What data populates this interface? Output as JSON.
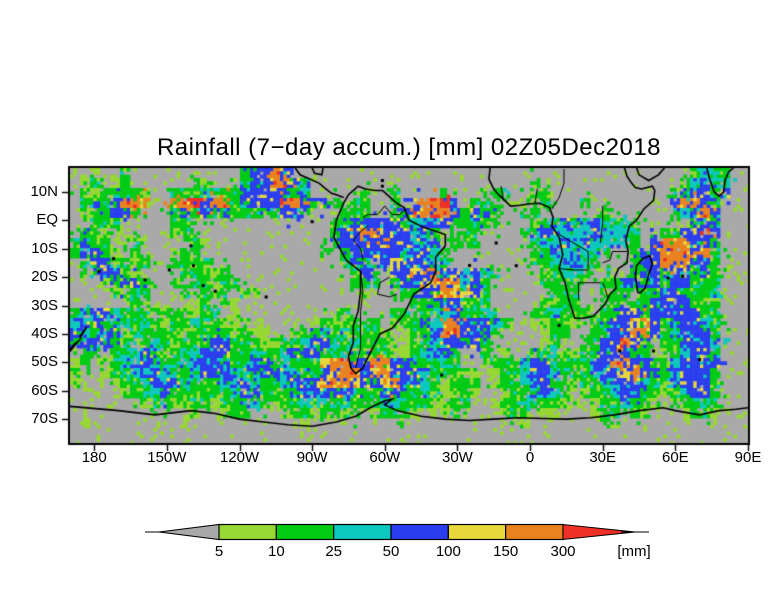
{
  "title": "Rainfall (7−day accum.) [mm] 02Z05Dec2018",
  "axes": {
    "y_tick_labels": [
      "10N",
      "EQ",
      "10S",
      "20S",
      "30S",
      "40S",
      "50S",
      "60S",
      "70S"
    ],
    "x_tick_labels": [
      "180",
      "150W",
      "120W",
      "90W",
      "60W",
      "30W",
      "0",
      "30E",
      "60E",
      "90E"
    ]
  },
  "colorbar": {
    "tick_labels": [
      "5",
      "10",
      "25",
      "50",
      "100",
      "150",
      "300"
    ],
    "unit_label": "[mm]",
    "below_min_color": "#a9a9a9",
    "above_max_color": "#ed2f26",
    "segment_colors": [
      "#97d832",
      "#00cc14",
      "#0cc8be",
      "#2a3ef0",
      "#e8d83c",
      "#ea821f"
    ]
  },
  "chart_data": {
    "type": "heatmap",
    "title": "Rainfall (7−day accum.) [mm] 02Z05Dec2018",
    "variable": "7-day accumulated rainfall",
    "unit": "mm",
    "valid_time": "02Z05Dec2018",
    "lon_range_deg": [
      -190,
      90
    ],
    "lat_range_deg": [
      -78.4,
      18.4
    ],
    "x_ticks_deg": [
      -180,
      -150,
      -120,
      -90,
      -60,
      -30,
      0,
      30,
      60,
      90
    ],
    "y_ticks_deg": [
      10,
      0,
      -10,
      -20,
      -30,
      -40,
      -50,
      -60,
      -70
    ],
    "levels_mm": [
      5,
      10,
      25,
      50,
      100,
      150,
      300
    ],
    "palette": {
      ".": "#a9a9a9",
      "1": "#97d832",
      "2": "#00cc14",
      "3": "#0cc8be",
      "4": "#2a3ef0",
      "5": "#e8d83c",
      "6": "#ea821f",
      "7": "#ed2f26"
    },
    "grid_legend": ". <5mm | 1:5-10 | 2:10-25 | 3:25-50 | 4:50-100 | 5:100-150 | 6:150-300 | 7:>300 (68 cols x 28 rows, 10px cells over plot area)",
    "grid_rows": [
      [
        "..1..2....",
        ".......244",
        "64........",
        "..........",
        "..........",
        "..........",
        "..2332.."
      ],
      [
        ".12.12....",
        "..21...244",
        "6642......",
        "..........",
        "......2...",
        "..........",
        ".23433.."
      ],
      [
        ".2122221..",
        "2223222444",
        "4423.....2",
        "..2....2..",
        "..22..22..",
        "..........",
        "244424.."
      ],
      [
        ".2324666..",
        "6674662444",
        "4664242.22",
        "..2.46674.",
        "22...2.2..",
        ".2........",
        "46642..."
      ],
      [
        ".122442...",
        "2424242222",
        "2442...222",
        "..24667642",
        "442..22...",
        "...2......",
        "23464..."
      ],
      [
        "..2221....",
        "222.......",
        "......2244",
        "4442334422",
        "322...2234",
        "2343232...",
        "..242..."
      ],
      [
        ".221......",
        "12........",
        "......2446",
        "6444342..2",
        "2....23443",
        "3343332..2",
        "24464..."
      ],
      [
        "2422.12...",
        "..21......",
        "......2444",
        "4644434.22",
        "2.....2334",
        "3433332.46",
        "66442..."
      ],
      [
        "24421.2...",
        "122.......",
        ".....2.244",
        "44434432..",
        "......2243",
        "3332..2446",
        "66462..."
      ],
      [
        ".2442212..",
        "2212......",
        ".......242",
        "44544432..",
        "......2233",
        "432...2446",
        "66442..."
      ],
      [
        "..24421...",
        ".22212....",
        "........24",
        "..44546443",
        "432....223",
        "32.2..2442",
        "44242..."
      ],
      [
        "...12442..",
        "2.22122...",
        "........22",
        "2.24456653",
        "42.....222",
        "2..2244242",
        "44222..."
      ],
      [
        "....2122..",
        ".2.212.21.",
        ".........1",
        "...2244665",
        "42......22",
        "2...22.224",
        "42223..."
      ],
      [
        "......21..",
        "..12..1...",
        "..........",
        "....222442",
        "22.....122",
        "2..22.2244",
        "44222..."
      ],
      [
        "2344322212",
        "22122.1...",
        "......12..",
        "..22.22342",
        "232...2232",
        "22.2244244",
        "44422..."
      ],
      [
        "3442232321",
        "2232211...",
        "....122122",
        "2.12243664",
        "4432..1122",
        "1.22445642",
        "44432..."
      ],
      [
        "4324413222",
        "2122221211",
        "..12232322",
        "21.1224664",
        "442....122",
        "..22446642",
        "34442..."
      ],
      [
        "244422.232",
        "1222442221",
        "1223443232",
        "22.1223442",
        "42.....12.",
        ".2244642.2",
        "24443..."
      ],
      [
        ".22.223421",
        "2234442232",
        "2344422321",
        "221123442.",
        ".2.1..2231",
        "12244422.1",
        "23442..."
      ],
      [
        "12.1234432",
        "2344432344",
        "2322256644",
        "664422232.",
        ".122234422",
        "2244664422",
        "34444..."
      ],
      [
        "2..1223443",
        "2234443234",
        "4432245664",
        "5644432221",
        "1.12234432",
        "2234456442",
        "44442..."
      ],
      [
        "1...122344",
        "4322234432",
        "2344456654",
        "4564432122",
        "2.1223442.",
        "1223444322",
        "34442..."
      ],
      [
        ".....12234",
        "2212223442",
        "2234444432",
        "2442232112",
        "1..1223432",
        ".122344221",
        "23442..."
      ],
      [
        ".......122",
        "1122122232",
        "1223322322",
        "2332221122",
        "..12232221",
        "1.1223221.",
        "12232..."
      ],
      [
        "..........",
        "..1..122..",
        ".12212212.",
        "12221.112.",
        "...122.11.",
        "..122.21..",
        ".1221..."
      ],
      [
        ".1........",
        "..........",
        "...1......",
        "..........",
        ".....1....",
        "..........",
        "........"
      ],
      [
        "..........",
        "..........",
        "..........",
        "..........",
        "..........",
        "..........",
        "........"
      ],
      [
        "..........",
        "..........",
        "..........",
        "..........",
        "..........",
        "..........",
        "........"
      ]
    ]
  },
  "map_layers": {
    "coastlines": {
      "south_america": [
        [
          -61,
          10.5
        ],
        [
          -55,
          6
        ],
        [
          -52,
          4.5
        ],
        [
          -50,
          0
        ],
        [
          -44,
          -2.5
        ],
        [
          -35,
          -5
        ],
        [
          -35,
          -9
        ],
        [
          -39,
          -13
        ],
        [
          -39,
          -18
        ],
        [
          -41,
          -22
        ],
        [
          -48,
          -26
        ],
        [
          -52,
          -33
        ],
        [
          -57,
          -38
        ],
        [
          -62,
          -40
        ],
        [
          -65,
          -45
        ],
        [
          -68,
          -50
        ],
        [
          -69,
          -52
        ],
        [
          -72,
          -54
        ],
        [
          -74,
          -52
        ],
        [
          -75,
          -48
        ],
        [
          -73,
          -43
        ],
        [
          -73,
          -37
        ],
        [
          -71,
          -32
        ],
        [
          -70,
          -25
        ],
        [
          -70,
          -18
        ],
        [
          -76,
          -14
        ],
        [
          -81,
          -6
        ],
        [
          -80,
          0
        ],
        [
          -77,
          6
        ],
        [
          -75,
          9
        ],
        [
          -71,
          12
        ],
        [
          -68,
          11
        ],
        [
          -64,
          10.5
        ],
        [
          -61,
          10.5
        ]
      ],
      "central_america": [
        [
          -77,
          8
        ],
        [
          -80,
          9
        ],
        [
          -82,
          9.5
        ],
        [
          -85,
          11.5
        ],
        [
          -87,
          13
        ],
        [
          -91,
          14.5
        ],
        [
          -95,
          16
        ],
        [
          -97,
          18.4
        ]
      ],
      "yucatan": [
        [
          -90,
          18.4
        ],
        [
          -89,
          16.5
        ],
        [
          -86,
          16
        ],
        [
          -85.5,
          18.4
        ]
      ],
      "africa": [
        [
          -16.5,
          18.4
        ],
        [
          -17,
          14.5
        ],
        [
          -15,
          11
        ],
        [
          -13,
          9
        ],
        [
          -8,
          5
        ],
        [
          -4,
          5.3
        ],
        [
          0,
          5.8
        ],
        [
          4,
          6
        ],
        [
          8,
          4.5
        ],
        [
          9.5,
          1
        ],
        [
          9,
          -2
        ],
        [
          12,
          -6
        ],
        [
          13.5,
          -12
        ],
        [
          12,
          -17
        ],
        [
          14.5,
          -22
        ],
        [
          16,
          -28
        ],
        [
          18.5,
          -34.5
        ],
        [
          22,
          -34.5
        ],
        [
          26,
          -33.8
        ],
        [
          31,
          -29.5
        ],
        [
          33,
          -26
        ],
        [
          35.5,
          -24
        ],
        [
          35,
          -20
        ],
        [
          36.5,
          -17
        ],
        [
          40,
          -15
        ],
        [
          40.5,
          -11
        ],
        [
          39.5,
          -7
        ],
        [
          41,
          -2
        ],
        [
          44,
          0
        ],
        [
          47,
          4
        ],
        [
          51,
          7
        ],
        [
          51.5,
          10.5
        ],
        [
          50.5,
          12
        ],
        [
          46,
          11
        ],
        [
          43.5,
          11.5
        ],
        [
          42,
          13
        ],
        [
          40,
          15.5
        ],
        [
          39,
          18.4
        ]
      ],
      "arabia": [
        [
          44,
          18.4
        ],
        [
          45,
          16
        ],
        [
          49,
          14
        ],
        [
          53,
          16
        ],
        [
          55.5,
          18.4
        ]
      ],
      "india_srilanka": [
        [
          73,
          18.4
        ],
        [
          74,
          15
        ],
        [
          76,
          10
        ],
        [
          78,
          8.5
        ],
        [
          80,
          10
        ],
        [
          80.5,
          14
        ],
        [
          82,
          17
        ],
        [
          84,
          18.4
        ]
      ],
      "madagascar": [
        [
          44.5,
          -25.5
        ],
        [
          43.5,
          -20
        ],
        [
          44,
          -16
        ],
        [
          46.5,
          -13.5
        ],
        [
          49.5,
          -12.5
        ],
        [
          50.5,
          -15.5
        ],
        [
          49,
          -19
        ],
        [
          47.5,
          -24
        ],
        [
          45.5,
          -25.5
        ],
        [
          44.5,
          -25.5
        ]
      ],
      "new_zealand_south": [
        [
          -190,
          -46.2
        ],
        [
          -188,
          -44
        ],
        [
          -186.5,
          -42.5
        ],
        [
          -188.2,
          -43.6
        ],
        [
          -190,
          -45.6
        ]
      ],
      "new_zealand_north": [
        [
          -186,
          -41.5
        ],
        [
          -184.5,
          -39.5
        ],
        [
          -183,
          -37.5
        ],
        [
          -184.6,
          -39.2
        ],
        [
          -186,
          -41
        ]
      ],
      "antarctica": [
        [
          -190,
          -65.5
        ],
        [
          -170,
          -67
        ],
        [
          -155,
          -68.5
        ],
        [
          -140,
          -67
        ],
        [
          -130,
          -68
        ],
        [
          -120,
          -70
        ],
        [
          -110,
          -71
        ],
        [
          -100,
          -72
        ],
        [
          -90,
          -72.5
        ],
        [
          -80,
          -71
        ],
        [
          -72,
          -69
        ],
        [
          -66,
          -66
        ],
        [
          -60,
          -63.5
        ],
        [
          -57,
          -63
        ],
        [
          -60,
          -65
        ],
        [
          -55,
          -67
        ],
        [
          -45,
          -69
        ],
        [
          -35,
          -70
        ],
        [
          -25,
          -70.5
        ],
        [
          -15,
          -70
        ],
        [
          -5,
          -69.5
        ],
        [
          5,
          -69.8
        ],
        [
          15,
          -70
        ],
        [
          25,
          -69.5
        ],
        [
          35,
          -68.5
        ],
        [
          45,
          -67
        ],
        [
          55,
          -66
        ],
        [
          60,
          -67
        ],
        [
          70,
          -68.5
        ],
        [
          78,
          -67
        ],
        [
          85,
          -66.5
        ],
        [
          90,
          -66
        ]
      ]
    },
    "borders": [
      [
        [
          -70,
          -18
        ],
        [
          -69,
          -25
        ],
        [
          -70,
          -32
        ],
        [
          -70,
          -45
        ],
        [
          -72,
          -52
        ]
      ],
      [
        [
          -58,
          -20
        ],
        [
          -62,
          -22
        ],
        [
          -63,
          -26
        ],
        [
          -58,
          -27
        ],
        [
          -55,
          -26
        ]
      ],
      [
        [
          -67,
          -2
        ],
        [
          -70,
          -4
        ],
        [
          -73,
          -7
        ],
        [
          -70,
          -10
        ],
        [
          -69,
          -14
        ]
      ],
      [
        [
          -60,
          5
        ],
        [
          -63,
          2
        ],
        [
          -67,
          2
        ],
        [
          -69,
          1
        ]
      ],
      [
        [
          -51,
          4
        ],
        [
          -54,
          2
        ],
        [
          -57,
          2
        ],
        [
          -60,
          5
        ]
      ],
      [
        [
          12,
          -5
        ],
        [
          18,
          -8
        ],
        [
          24,
          -11
        ],
        [
          24,
          -17
        ]
      ],
      [
        [
          12,
          -17
        ],
        [
          18,
          -17.5
        ],
        [
          24,
          -17.5
        ]
      ],
      [
        [
          20,
          -28
        ],
        [
          20,
          -22
        ],
        [
          25,
          -22
        ],
        [
          29,
          -22
        ]
      ],
      [
        [
          30,
          -22
        ],
        [
          31,
          -24
        ],
        [
          32,
          -27
        ]
      ],
      [
        [
          40,
          -11
        ],
        [
          34,
          -11
        ],
        [
          33,
          -14
        ],
        [
          30,
          -15
        ]
      ],
      [
        [
          30,
          5
        ],
        [
          30,
          -1
        ],
        [
          29,
          -8
        ]
      ],
      [
        [
          9,
          4
        ],
        [
          12,
          8
        ],
        [
          14,
          13
        ],
        [
          14,
          18
        ]
      ],
      [
        [
          -12,
          12
        ],
        [
          -11,
          7
        ]
      ],
      [
        [
          2,
          6
        ],
        [
          3,
          11
        ]
      ]
    ],
    "island_dots": [
      [
        -155,
        19
      ],
      [
        -149,
        -17.5
      ],
      [
        -140,
        -9
      ],
      [
        -139,
        -16
      ],
      [
        -172,
        -13.5
      ],
      [
        -178,
        -18
      ],
      [
        -90,
        -0.5
      ],
      [
        -109,
        -27
      ],
      [
        -130,
        -25
      ],
      [
        57,
        -20.3
      ],
      [
        63,
        -19.7
      ],
      [
        -25,
        -15.9
      ],
      [
        -14,
        -8
      ],
      [
        -5.7,
        -16
      ],
      [
        12,
        -37
      ],
      [
        37,
        -46
      ],
      [
        51,
        -46
      ],
      [
        70,
        -49
      ],
      [
        -36.5,
        -54.5
      ],
      [
        -61,
        14
      ],
      [
        -61,
        12
      ],
      [
        -159,
        -21
      ],
      [
        -135,
        -23
      ]
    ]
  }
}
